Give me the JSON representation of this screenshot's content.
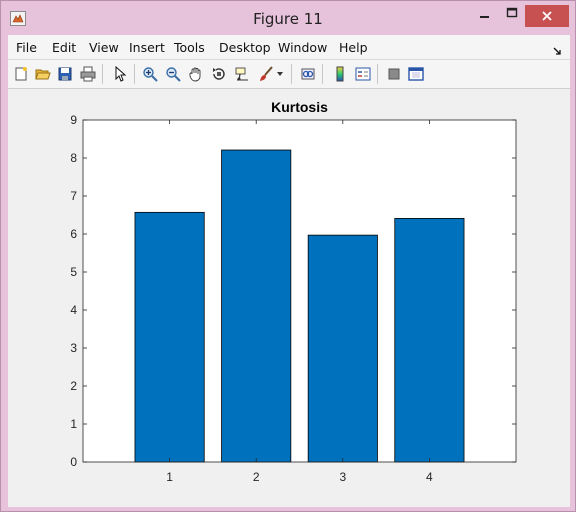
{
  "window": {
    "title": "Figure 11",
    "title_color": "#e6c3db",
    "close_color": "#c75050"
  },
  "menu": {
    "items": [
      "File",
      "Edit",
      "View",
      "Insert",
      "Tools",
      "Desktop",
      "Window",
      "Help"
    ]
  },
  "toolbar": {
    "buttons": [
      "new-figure-icon",
      "open-file-icon",
      "save-icon",
      "print-icon",
      "pointer-icon",
      "zoom-in-icon",
      "zoom-out-icon",
      "pan-icon",
      "rotate-3d-icon",
      "data-cursor-icon",
      "brush-icon",
      "brush-dropdown-icon",
      "link-plot-icon",
      "colorbar-icon",
      "legend-icon",
      "hide-plot-tools-icon",
      "show-plot-tools-icon"
    ]
  },
  "chart_data": {
    "type": "bar",
    "title": "Kurtosis",
    "categories": [
      "1",
      "2",
      "3",
      "4"
    ],
    "values": [
      6.57,
      8.21,
      5.97,
      6.41
    ],
    "xlim": [
      0,
      5
    ],
    "ylim": [
      0,
      9
    ],
    "yticks": [
      "0",
      "1",
      "2",
      "3",
      "4",
      "5",
      "6",
      "7",
      "8",
      "9"
    ],
    "xlabel": "",
    "ylabel": "",
    "bar_color": "#0072bd",
    "grid": false
  }
}
